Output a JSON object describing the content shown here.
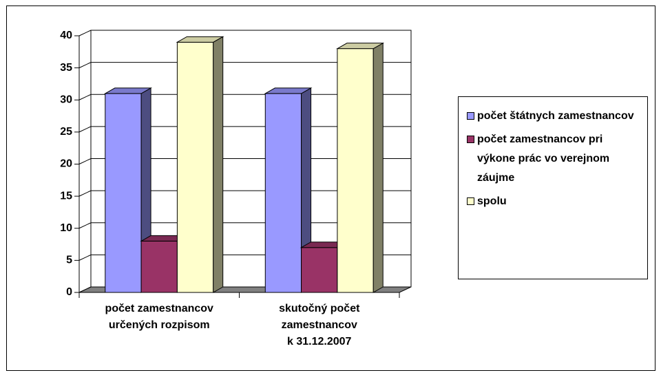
{
  "chart_data": {
    "type": "bar3d",
    "categories": [
      "počet zamestnancov\nurčených rozpisom",
      "skutočný počet\nzamestnancov\nk 31.12.2007"
    ],
    "series": [
      {
        "name": "počet štátnych zamestnancov",
        "color": "#9999ff",
        "values": [
          31,
          31
        ]
      },
      {
        "name": "počet zamestnancov pri výkone prác vo verejnom záujme",
        "color": "#993366",
        "values": [
          8,
          7
        ]
      },
      {
        "name": "spolu",
        "color": "#ffffcc",
        "values": [
          39,
          38
        ]
      }
    ],
    "ylim": [
      0,
      40
    ],
    "yticks": [
      0,
      5,
      10,
      15,
      20,
      25,
      30,
      35,
      40
    ],
    "grid": true,
    "legend": "right"
  }
}
